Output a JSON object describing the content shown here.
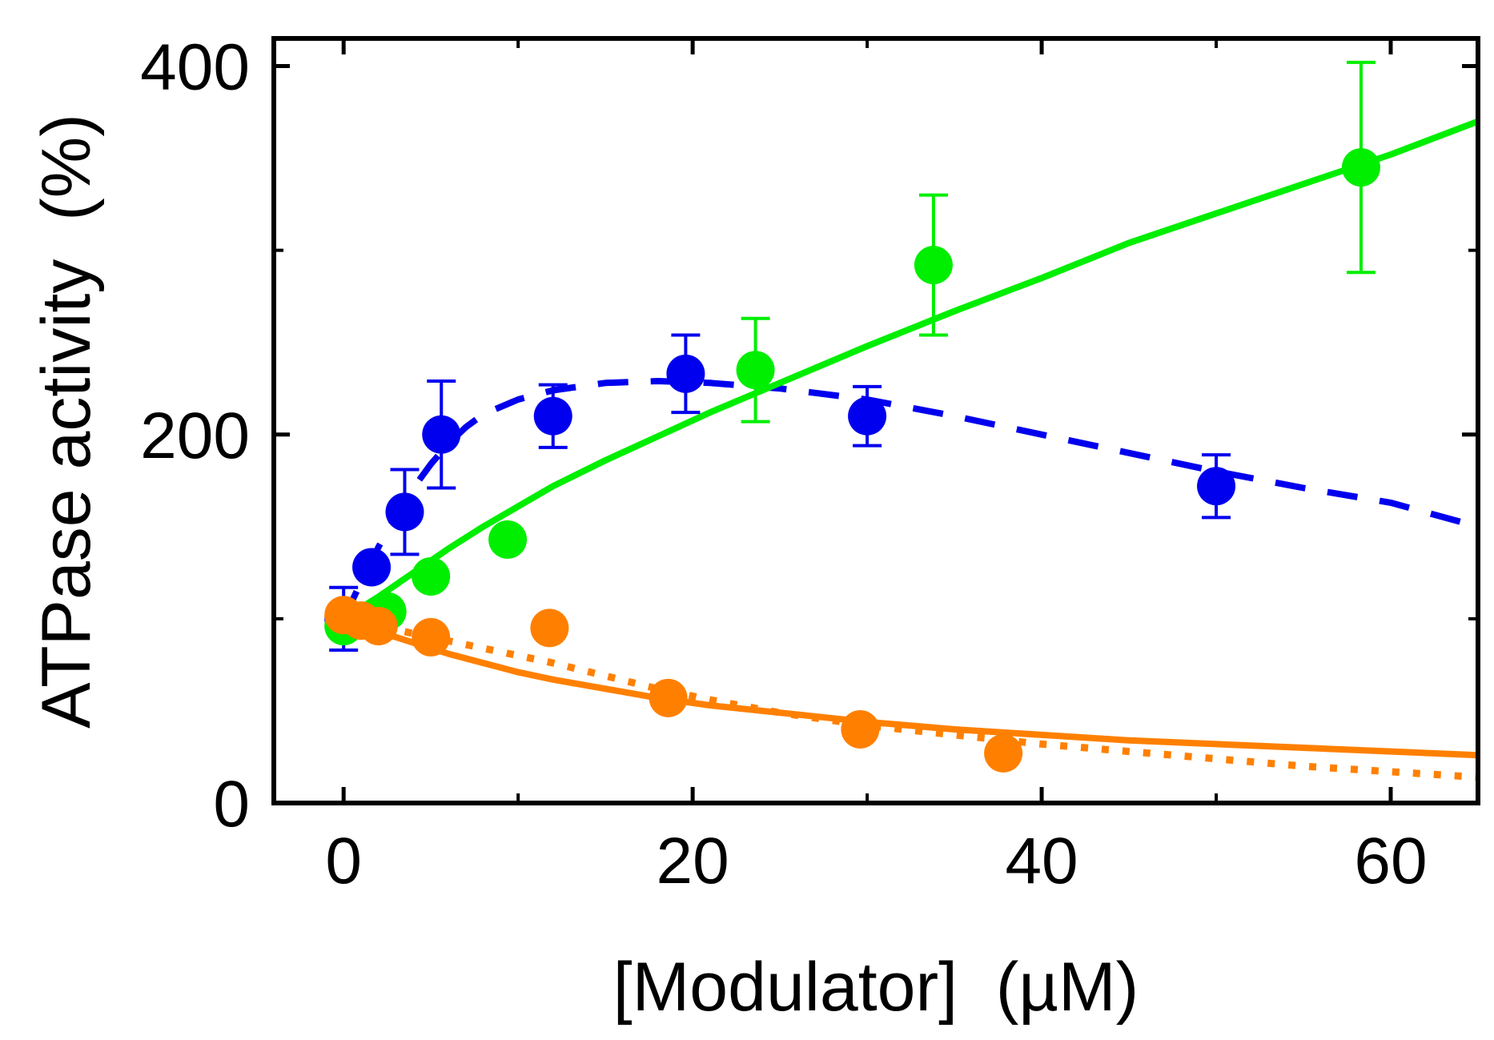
{
  "chart_data": {
    "type": "scatter",
    "title": "",
    "xlabel": "[Modulator]  (µM)",
    "ylabel": "ATPase activity  (%)",
    "xlim": [
      -4,
      65
    ],
    "ylim": [
      0,
      415
    ],
    "x_ticks": [
      0,
      20,
      40,
      60
    ],
    "y_ticks": [
      0,
      200,
      400
    ],
    "x_minor_ticks": [
      10,
      30,
      50
    ],
    "y_minor_ticks": [
      100,
      300
    ],
    "grid": false,
    "legend": "none",
    "series": [
      {
        "name": "blue",
        "color": "#0000ee",
        "points": [
          {
            "x": 0,
            "y": 100,
            "err": 17
          },
          {
            "x": 1.6,
            "y": 128,
            "err": 0
          },
          {
            "x": 3.5,
            "y": 158,
            "err": 23
          },
          {
            "x": 5.6,
            "y": 200,
            "err": 29
          },
          {
            "x": 12.0,
            "y": 210,
            "err": 17
          },
          {
            "x": 19.6,
            "y": 233,
            "err": 21
          },
          {
            "x": 30.0,
            "y": 210,
            "err": 16
          },
          {
            "x": 50.0,
            "y": 172,
            "err": 17
          }
        ],
        "fit": {
          "style": "dashed",
          "x": [
            0,
            1,
            2,
            3,
            4,
            5,
            6,
            7,
            8,
            10,
            12,
            15,
            18,
            21,
            25,
            30,
            35,
            40,
            45,
            50,
            55,
            60,
            65
          ],
          "y": [
            100,
            120,
            139,
            156,
            171,
            184,
            195,
            204,
            211,
            219,
            224,
            228,
            229,
            228,
            225,
            219,
            210,
            200,
            190,
            180,
            171,
            163,
            150
          ]
        }
      },
      {
        "name": "green",
        "color": "#00ee00",
        "points": [
          {
            "x": 0,
            "y": 96,
            "err": 0
          },
          {
            "x": 2.5,
            "y": 104,
            "err": 0
          },
          {
            "x": 5.0,
            "y": 123,
            "err": 0
          },
          {
            "x": 9.4,
            "y": 143,
            "err": 0
          },
          {
            "x": 23.6,
            "y": 235,
            "err": 28
          },
          {
            "x": 33.8,
            "y": 292,
            "err": 38
          },
          {
            "x": 58.3,
            "y": 345,
            "err": 57
          }
        ],
        "fit": {
          "style": "solid",
          "x": [
            0,
            2,
            4,
            6,
            8,
            10,
            12,
            15,
            18,
            21,
            25,
            30,
            35,
            40,
            45,
            50,
            55,
            60,
            65
          ],
          "y": [
            100,
            112,
            125,
            138,
            150,
            161,
            172,
            186,
            199,
            212,
            228,
            248,
            267,
            285,
            304,
            320,
            336,
            352,
            370
          ]
        }
      },
      {
        "name": "orange",
        "color": "#ff8000",
        "points": [
          {
            "x": 0,
            "y": 102,
            "err": 0
          },
          {
            "x": 1.0,
            "y": 99,
            "err": 0
          },
          {
            "x": 2.0,
            "y": 96,
            "err": 0
          },
          {
            "x": 5.0,
            "y": 90,
            "err": 0
          },
          {
            "x": 11.8,
            "y": 95,
            "err": 0
          },
          {
            "x": 18.6,
            "y": 57,
            "err": 0
          },
          {
            "x": 29.6,
            "y": 40,
            "err": 0
          },
          {
            "x": 37.8,
            "y": 27,
            "err": 0
          }
        ],
        "fit": {
          "style": "solid",
          "x": [
            0,
            2,
            4,
            6,
            8,
            10,
            12,
            15,
            18,
            21,
            25,
            30,
            35,
            40,
            45,
            50,
            55,
            60,
            65
          ],
          "y": [
            100,
            93,
            87,
            81,
            76,
            71,
            67,
            62,
            57,
            53,
            49,
            44,
            40,
            37,
            34,
            32,
            30,
            28,
            26
          ]
        },
        "fit2": {
          "style": "dotted",
          "x": [
            0,
            3,
            6,
            9,
            12,
            15,
            18,
            21,
            25,
            30,
            35,
            40,
            45,
            50,
            55,
            60,
            65
          ],
          "y": [
            100,
            94,
            88,
            82,
            76,
            69,
            62,
            56,
            49,
            42,
            37,
            32,
            28,
            24,
            20,
            17,
            14
          ]
        }
      }
    ]
  }
}
